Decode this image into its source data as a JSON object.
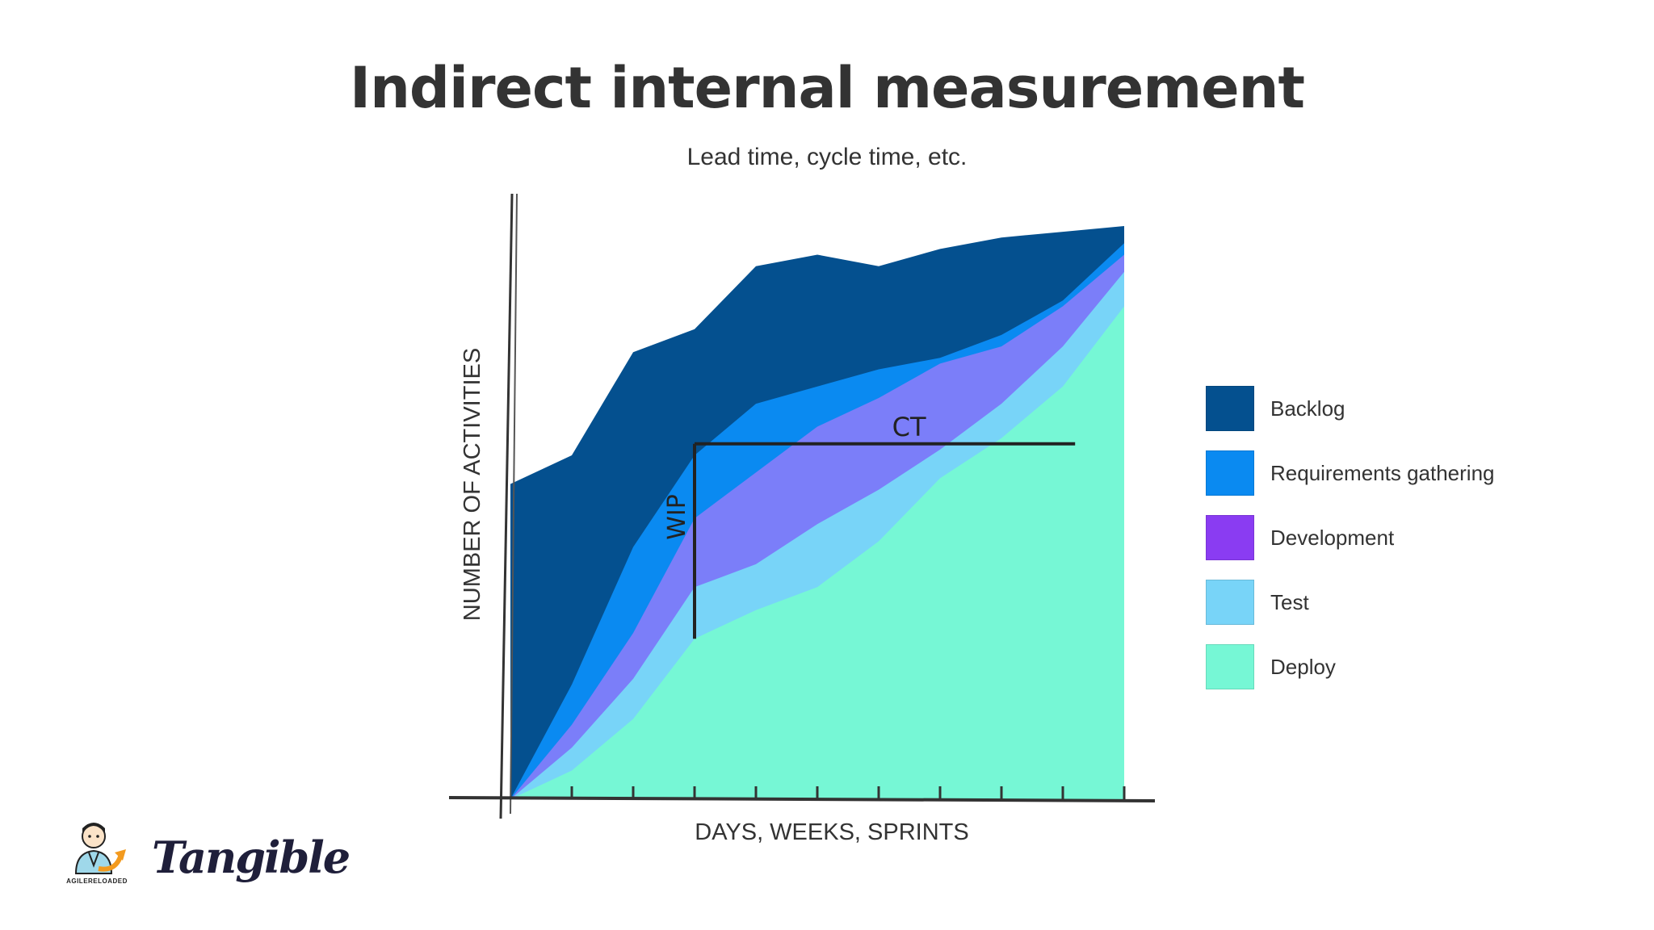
{
  "slide": {
    "title": "Indirect internal measurement",
    "subtitle": "Lead time, cycle time, etc."
  },
  "chart_data": {
    "type": "area",
    "stacked": true,
    "xlabel": "DAYS, WEEKS, SPRINTS",
    "ylabel": "NUMBER OF ACTIVITIES",
    "x": [
      0,
      1,
      2,
      3,
      4,
      5,
      6,
      7,
      8,
      9,
      10
    ],
    "xlim": [
      0,
      10
    ],
    "ylim": [
      0,
      100
    ],
    "series": [
      {
        "name": "Deploy",
        "color": "#76f7d5",
        "values": [
          0,
          5,
          14,
          28,
          33,
          37,
          45,
          56,
          63,
          72,
          86
        ]
      },
      {
        "name": "Test",
        "color": "#78d4f8",
        "values": [
          0,
          9,
          21,
          37,
          41,
          48,
          54,
          61,
          69,
          79,
          92
        ]
      },
      {
        "name": "Development",
        "color": "#7b7ef9",
        "values": [
          0,
          13,
          29,
          49,
          57,
          65,
          70,
          76,
          79,
          86,
          95
        ]
      },
      {
        "name": "Requirements gathering",
        "color": "#0a8af1",
        "values": [
          0,
          20,
          44,
          60,
          69,
          72,
          75,
          77,
          81,
          87,
          97
        ]
      },
      {
        "name": "Backlog",
        "color": "#04508f",
        "values": [
          55,
          60,
          78,
          82,
          93,
          95,
          93,
          96,
          98,
          99,
          100
        ]
      }
    ],
    "annotations": [
      {
        "text": "CT",
        "type": "horizontal-span",
        "x_start": 3,
        "x_end": 9.2,
        "y": 62
      },
      {
        "text": "WIP",
        "type": "vertical-span",
        "x": 3,
        "y_start": 28,
        "y_end": 62
      }
    ],
    "legend_position": "right",
    "grid": false
  },
  "legend": {
    "items": [
      {
        "label": "Backlog",
        "color": "#04508f"
      },
      {
        "label": "Requirements gathering",
        "color": "#0a8af1"
      },
      {
        "label": "Development",
        "color": "#8a3cf2"
      },
      {
        "label": "Test",
        "color": "#78d4f8"
      },
      {
        "label": "Deploy",
        "color": "#76f7d5"
      }
    ]
  },
  "logos": {
    "agile_reloaded": "AGILERELOADED",
    "tangible": "Tangible"
  }
}
